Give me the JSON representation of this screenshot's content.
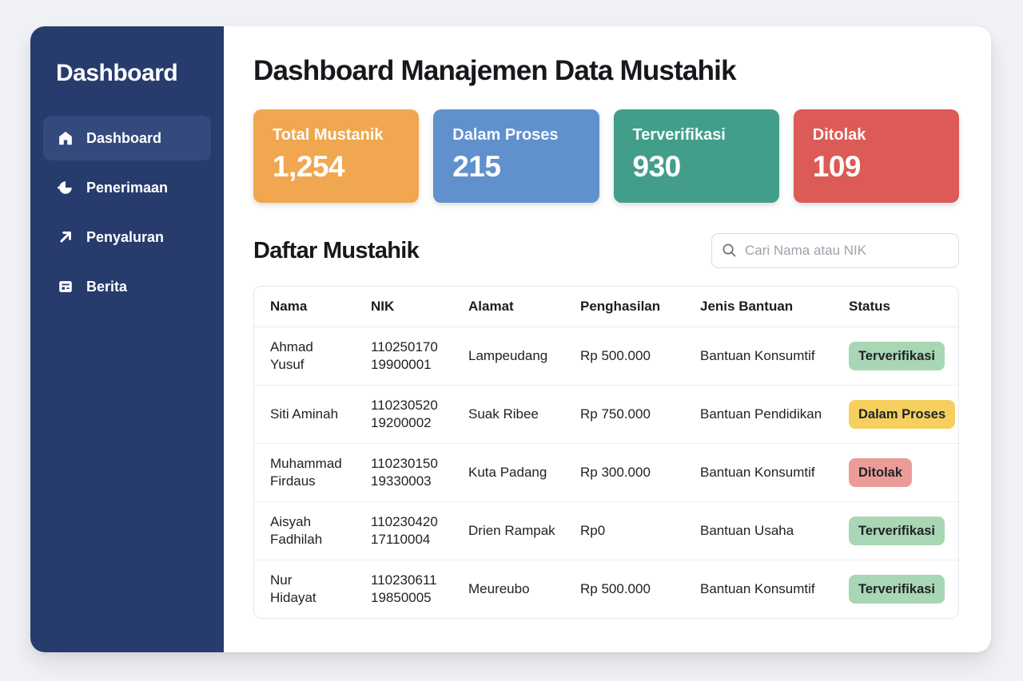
{
  "colors": {
    "page_bg": "#f1f2f5",
    "sidebar": "#273c6d",
    "sidebar_active": "#34497c",
    "badge_text": "#1f2227"
  },
  "sidebar": {
    "title": "Dashboard",
    "items": [
      {
        "label": "Dashboard",
        "icon": "home-icon",
        "active": true
      },
      {
        "label": "Penerimaan",
        "icon": "receive-icon",
        "active": false
      },
      {
        "label": "Penyaluran",
        "icon": "send-icon",
        "active": false
      },
      {
        "label": "Berita",
        "icon": "news-icon",
        "active": false
      }
    ]
  },
  "header": {
    "title": "Dashboard Manajemen Data Mustahik"
  },
  "stats": [
    {
      "label": "Total Mustanik",
      "value": "1,254",
      "color": "#f0a74f"
    },
    {
      "label": "Dalam Proses",
      "value": "215",
      "color": "#6191cd"
    },
    {
      "label": "Terverifikasi",
      "value": "930",
      "color": "#429e8b"
    },
    {
      "label": "Ditolak",
      "value": "109",
      "color": "#dc5b56"
    }
  ],
  "list_section": {
    "title": "Daftar Mustahik",
    "search_placeholder": "Cari Nama atau NIK",
    "search_icon": "search-icon"
  },
  "table": {
    "columns": [
      "Nama",
      "NIK",
      "Alamat",
      "Penghasilan",
      "Jenis Bantuan",
      "Status"
    ],
    "rows": [
      {
        "nama": "Ahmad Yusuf",
        "nik": "110250170 19900001",
        "alamat": "Lampeudang",
        "penghasilan": "Rp 500.000",
        "jenis_bantuan": "Bantuan Konsumtif",
        "status": "Terverifikasi",
        "status_type": "verified"
      },
      {
        "nama": "Siti Aminah",
        "nik": "110230520 19200002",
        "alamat": "Suak Ribee",
        "penghasilan": "Rp 750.000",
        "jenis_bantuan": "Bantuan Pendidikan",
        "status": "Dalam Proses",
        "status_type": "process"
      },
      {
        "nama": "Muhammad Firdaus",
        "nik": "110230150 19330003",
        "alamat": "Kuta Padang",
        "penghasilan": "Rp 300.000",
        "jenis_bantuan": "Bantuan Konsumtif",
        "status": "Ditolak",
        "status_type": "rejected"
      },
      {
        "nama": "Aisyah Fadhilah",
        "nik": "110230420 17110004",
        "alamat": "Drien Rampak",
        "penghasilan": "Rp0",
        "jenis_bantuan": "Bantuan Usaha",
        "status": "Terverifikasi",
        "status_type": "verified"
      },
      {
        "nama": "Nur Hidayat",
        "nik": "110230611 19850005",
        "alamat": "Meureubo",
        "penghasilan": "Rp 500.000",
        "jenis_bantuan": "Bantuan Konsumtif",
        "status": "Terverifikasi",
        "status_type": "verified"
      }
    ],
    "status_colors": {
      "verified": "#a9d6b4",
      "process": "#f6cf5e",
      "rejected": "#eb9c97"
    }
  }
}
